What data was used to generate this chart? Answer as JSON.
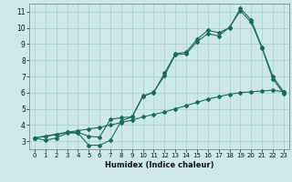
{
  "xlabel": "Humidex (Indice chaleur)",
  "bg_color": "#cce8e8",
  "grid_color": "#b0d0d0",
  "line_color": "#1a6b5a",
  "xlim": [
    -0.5,
    23.5
  ],
  "ylim": [
    2.5,
    11.5
  ],
  "xticks": [
    0,
    1,
    2,
    3,
    4,
    5,
    6,
    7,
    8,
    9,
    10,
    11,
    12,
    13,
    14,
    15,
    16,
    17,
    18,
    19,
    20,
    21,
    22,
    23
  ],
  "yticks": [
    3,
    4,
    5,
    6,
    7,
    8,
    9,
    10,
    11
  ],
  "line1_x": [
    0,
    1,
    2,
    3,
    4,
    5,
    6,
    7,
    8,
    9,
    10,
    11,
    12,
    13,
    14,
    15,
    16,
    17,
    18,
    19,
    20,
    21,
    22,
    23
  ],
  "line1_y": [
    3.2,
    3.05,
    3.2,
    3.5,
    3.5,
    2.75,
    2.75,
    3.05,
    4.25,
    4.5,
    5.8,
    6.0,
    7.2,
    8.4,
    8.5,
    9.3,
    9.85,
    9.7,
    10.0,
    11.2,
    10.5,
    8.8,
    7.0,
    6.05
  ],
  "line2_x": [
    0,
    3,
    4,
    5,
    6,
    7,
    8,
    9,
    10,
    11,
    12,
    13,
    14,
    15,
    16,
    17,
    18,
    19,
    20,
    21,
    22,
    23
  ],
  "line2_y": [
    3.2,
    3.55,
    3.55,
    3.3,
    3.25,
    4.35,
    4.45,
    4.5,
    5.75,
    6.05,
    7.05,
    8.35,
    8.4,
    9.15,
    9.65,
    9.5,
    10.05,
    11.05,
    10.35,
    8.75,
    6.85,
    5.95
  ],
  "line3_x": [
    0,
    1,
    2,
    3,
    4,
    5,
    6,
    7,
    8,
    9,
    10,
    11,
    12,
    13,
    14,
    15,
    16,
    17,
    18,
    19,
    20,
    21,
    22,
    23
  ],
  "line3_y": [
    3.2,
    3.3,
    3.4,
    3.55,
    3.65,
    3.75,
    3.85,
    4.0,
    4.15,
    4.3,
    4.5,
    4.65,
    4.8,
    5.0,
    5.2,
    5.4,
    5.6,
    5.75,
    5.9,
    6.0,
    6.05,
    6.1,
    6.15,
    6.05
  ],
  "marker": "D",
  "markersize": 2.0
}
